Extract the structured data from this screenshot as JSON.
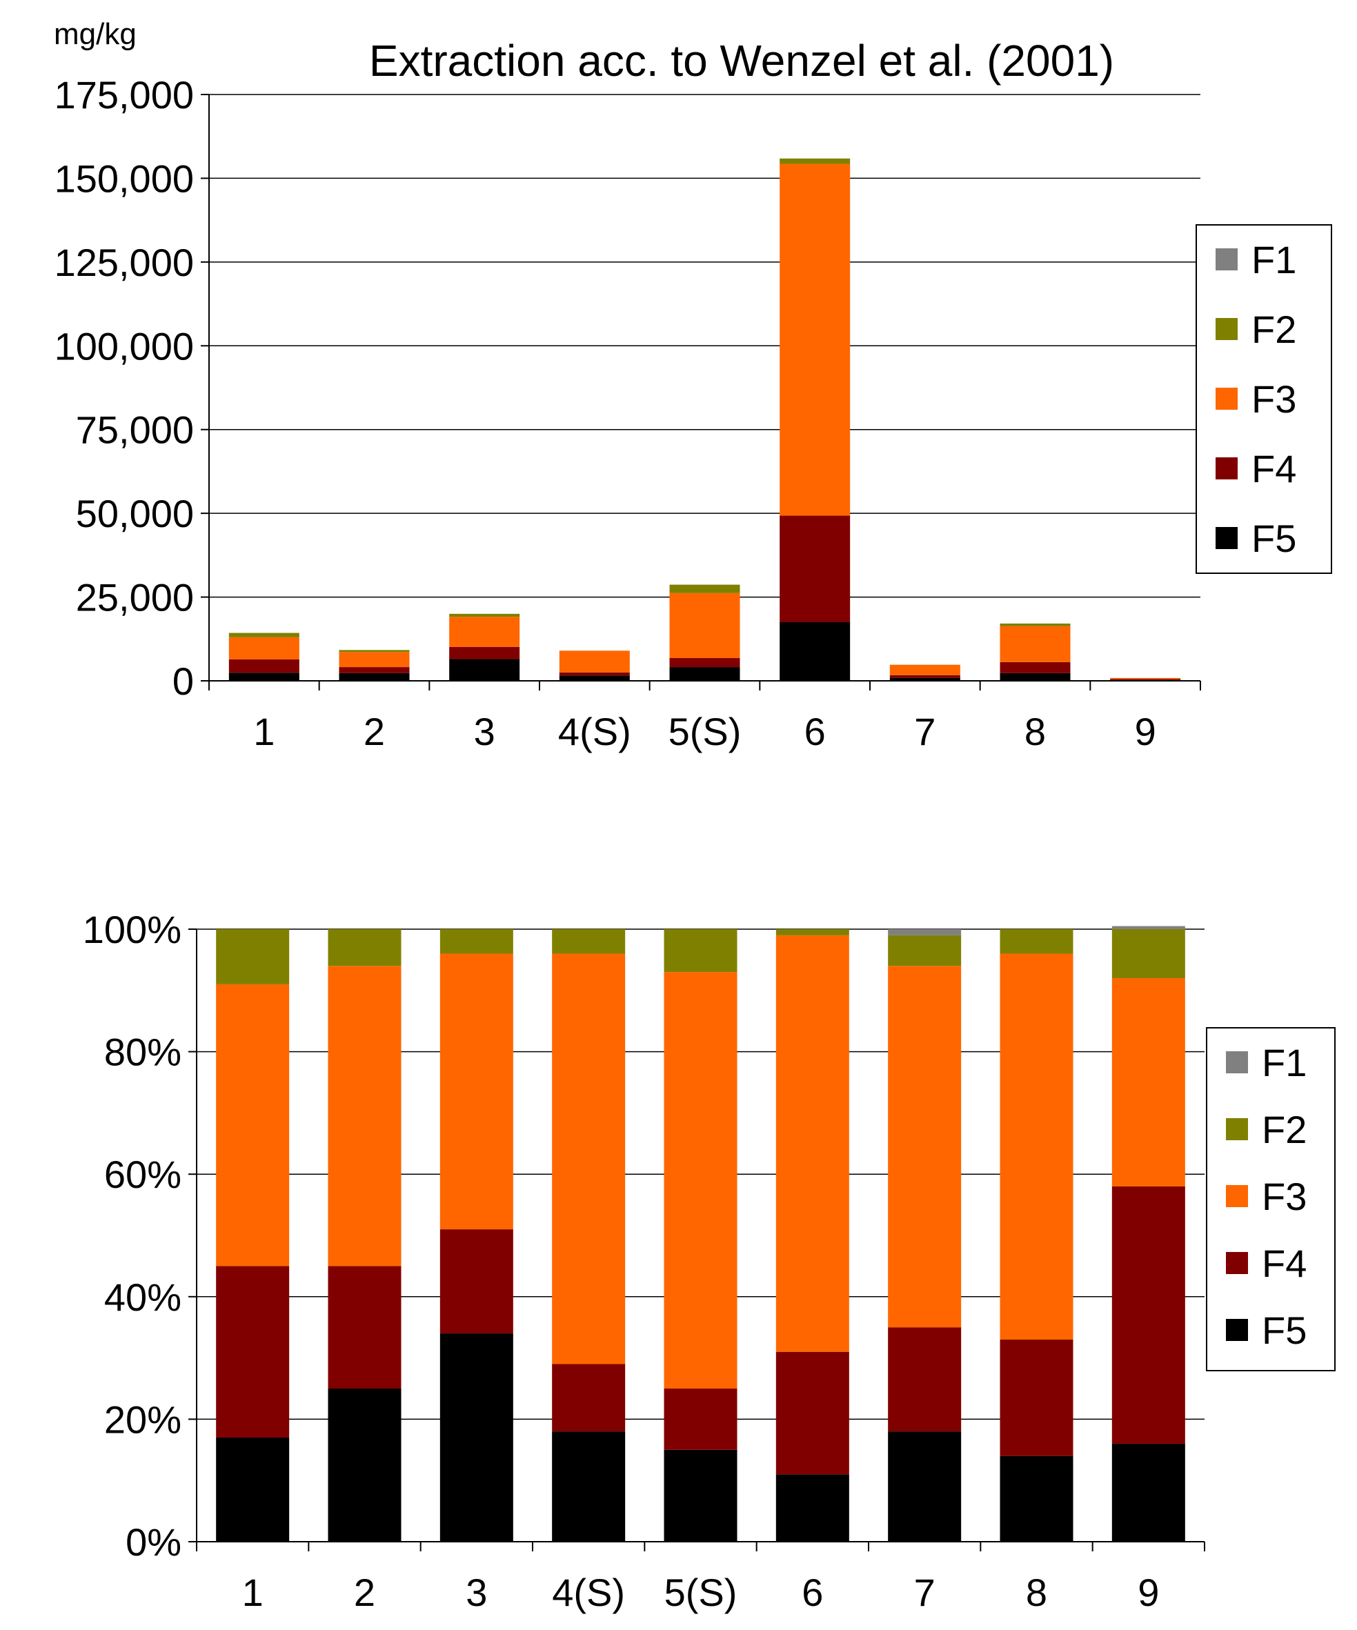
{
  "colors": {
    "F1": "#808080",
    "F2": "#808000",
    "F3": "#FF6600",
    "F4": "#800000",
    "F5": "#000000"
  },
  "chart_data": [
    {
      "type": "bar",
      "stacked": true,
      "title": "Extraction acc. to  Wenzel et al. (2001)",
      "ylabel": "mg/kg",
      "xlabel": "",
      "ylim": [
        0,
        175000
      ],
      "yticks": [
        "0",
        "25,000",
        "50,000",
        "75,000",
        "100,000",
        "125,000",
        "150,000",
        "175,000"
      ],
      "grid": true,
      "legend_position": "right",
      "categories": [
        "1",
        "2",
        "3",
        "4(S)",
        "5(S)",
        "6",
        "7",
        "8",
        "9"
      ],
      "series": [
        {
          "name": "F5",
          "values": [
            2400,
            2300,
            6500,
            1600,
            4100,
            17500,
            900,
            2300,
            150
          ]
        },
        {
          "name": "F4",
          "values": [
            4000,
            1800,
            3600,
            900,
            2700,
            31800,
            800,
            3300,
            400
          ]
        },
        {
          "name": "F3",
          "values": [
            6600,
            4500,
            9000,
            6500,
            19400,
            105000,
            3100,
            10700,
            300
          ]
        },
        {
          "name": "F2",
          "values": [
            1300,
            600,
            900,
            0,
            2500,
            1600,
            0,
            800,
            0
          ]
        },
        {
          "name": "F1",
          "values": [
            0,
            0,
            0,
            0,
            0,
            0,
            0,
            0,
            0
          ]
        }
      ]
    },
    {
      "type": "bar",
      "stacked": true,
      "percent": true,
      "title": "",
      "ylabel": "",
      "xlabel": "",
      "ylim": [
        0,
        100
      ],
      "yticks": [
        "0%",
        "20%",
        "40%",
        "60%",
        "80%",
        "100%"
      ],
      "grid": true,
      "legend_position": "right",
      "categories": [
        "1",
        "2",
        "3",
        "4(S)",
        "5(S)",
        "6",
        "7",
        "8",
        "9"
      ],
      "series": [
        {
          "name": "F5",
          "values": [
            17,
            25,
            34,
            18,
            15,
            11,
            18,
            14,
            16
          ]
        },
        {
          "name": "F4",
          "values": [
            28,
            20,
            17,
            11,
            10,
            20,
            17,
            19,
            42
          ]
        },
        {
          "name": "F3",
          "values": [
            46,
            49,
            45,
            67,
            68,
            68,
            59,
            63,
            34
          ]
        },
        {
          "name": "F2",
          "values": [
            9,
            6,
            4,
            4,
            7,
            1,
            5,
            4,
            8
          ]
        },
        {
          "name": "F1",
          "values": [
            0,
            0,
            0,
            0,
            0,
            0,
            1,
            0,
            0.5
          ]
        }
      ]
    }
  ]
}
